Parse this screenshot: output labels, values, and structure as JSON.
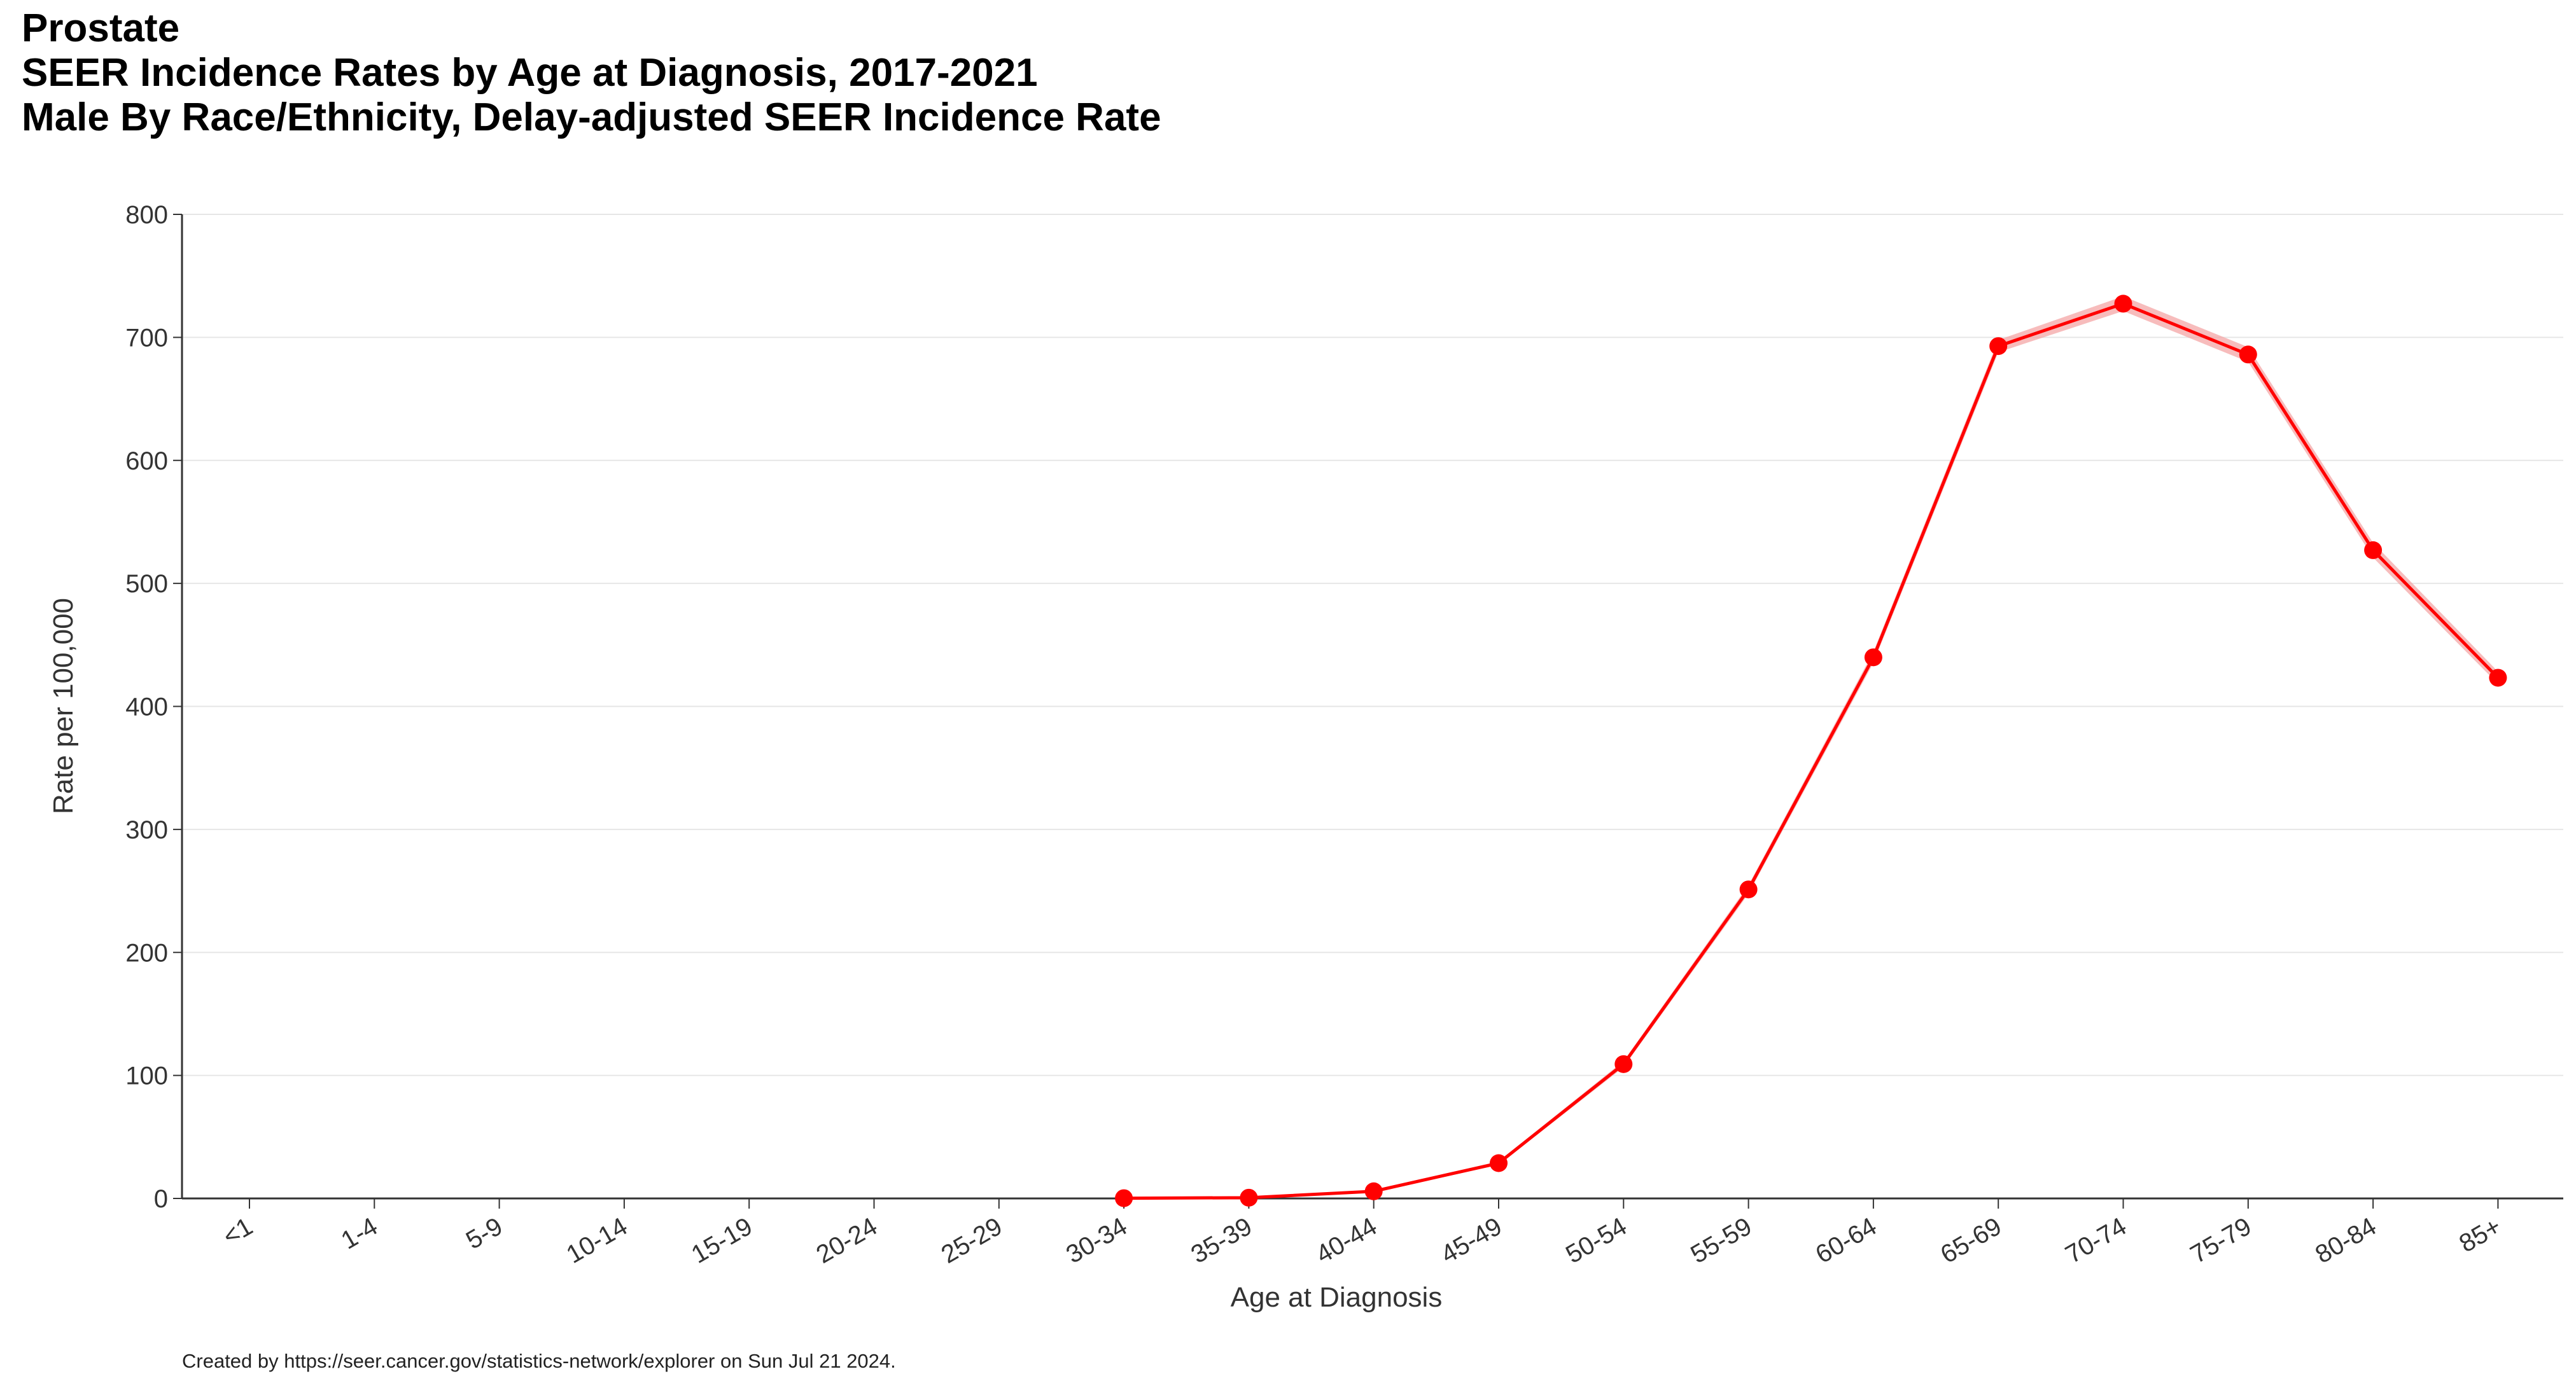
{
  "chart_data": {
    "type": "line",
    "title": "Prostate",
    "subtitle": "SEER Incidence Rates by Age at Diagnosis, 2017-2021",
    "subtitle2": "Male By Race/Ethnicity, Delay-adjusted SEER Incidence Rate",
    "xlabel": "Age at Diagnosis",
    "ylabel": "Rate per 100,000",
    "ylim": [
      0,
      800
    ],
    "yticks": [
      0,
      100,
      200,
      300,
      400,
      500,
      600,
      700,
      800
    ],
    "grid": true,
    "categories": [
      "<1",
      "1-4",
      "5-9",
      "10-14",
      "15-19",
      "20-24",
      "25-29",
      "30-34",
      "35-39",
      "40-44",
      "45-49",
      "50-54",
      "55-59",
      "60-64",
      "65-69",
      "70-74",
      "75-79",
      "80-84",
      "85+"
    ],
    "series": [
      {
        "name": "Delay-adjusted SEER Incidence Rate",
        "color": "#ff0000",
        "band_color": "#f4a0a0",
        "values": [
          null,
          null,
          null,
          null,
          null,
          null,
          null,
          0.2,
          0.6,
          5.8,
          28.7,
          109.2,
          251.2,
          439.9,
          692.9,
          727.4,
          686.1,
          527.0,
          423.3
        ],
        "ci_half_width": [
          null,
          null,
          null,
          null,
          null,
          null,
          null,
          0.1,
          0.2,
          0.8,
          1.5,
          2.5,
          3.5,
          4.5,
          5,
          6,
          6,
          6,
          5
        ]
      }
    ]
  },
  "footer": "Created by https://seer.cancer.gov/statistics-network/explorer on Sun Jul 21 2024."
}
